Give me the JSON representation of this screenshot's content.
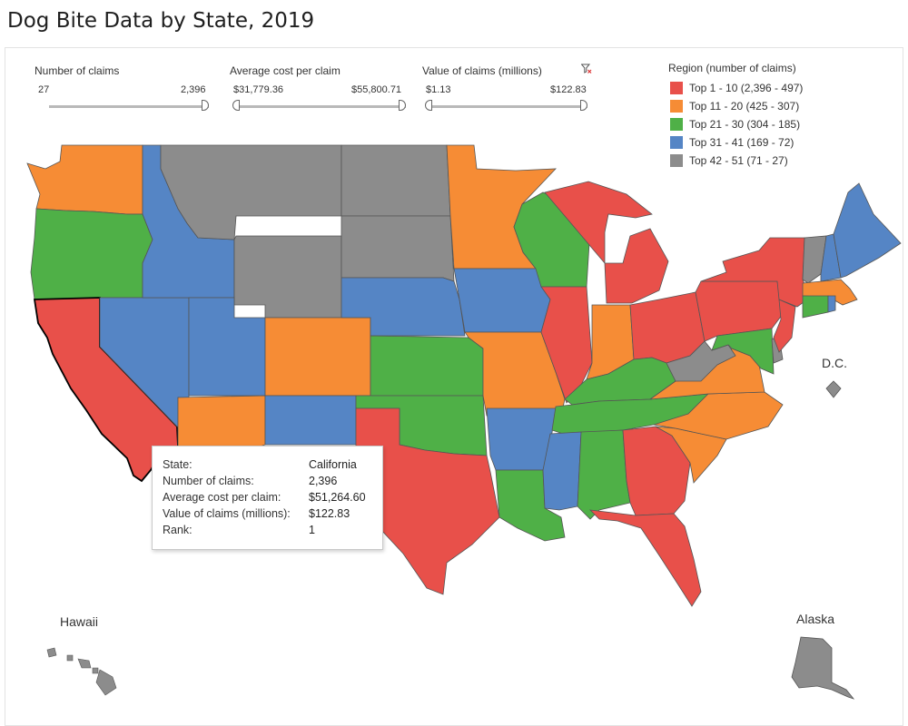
{
  "title": "Dog Bite Data by State, 2019",
  "filters": {
    "claims": {
      "title": "Number of claims",
      "min": "27",
      "max": "2,396"
    },
    "avg_cost": {
      "title": "Average cost per claim",
      "min": "$31,779.36",
      "max": "$55,800.71"
    },
    "value": {
      "title": "Value of claims (millions)",
      "min": "$1.13",
      "max": "$122.83"
    }
  },
  "legend": {
    "title": "Region (number of claims)",
    "items": [
      {
        "label": "Top 1 - 10 (2,396 - 497)",
        "color": "#e8504a"
      },
      {
        "label": "Top 11 - 20 (425 - 307)",
        "color": "#f68c35"
      },
      {
        "label": "Top 21 - 30 (304 - 185)",
        "color": "#4fb047"
      },
      {
        "label": "Top 31 - 41 (169 - 72)",
        "color": "#5585c5"
      },
      {
        "label": "Top 42 - 51 (71 - 27)",
        "color": "#8c8c8c"
      }
    ]
  },
  "tooltip": {
    "rows": [
      {
        "label": "State:",
        "value": "California"
      },
      {
        "label": "Number of claims:",
        "value": "2,396"
      },
      {
        "label": "Average cost per claim:",
        "value": "$51,264.60"
      },
      {
        "label": "Value of claims (millions):",
        "value": "$122.83"
      },
      {
        "label": "Rank:",
        "value": "1"
      }
    ]
  },
  "map_labels": {
    "dc": "D.C.",
    "hawaii": "Hawaii",
    "alaska": "Alaska"
  },
  "chart_data": {
    "type": "choropleth",
    "selected_state": "California",
    "states": [
      {
        "state": "California",
        "tier": 1
      },
      {
        "state": "Texas",
        "tier": 1
      },
      {
        "state": "Florida",
        "tier": 1
      },
      {
        "state": "Illinois",
        "tier": 1
      },
      {
        "state": "Michigan",
        "tier": 1
      },
      {
        "state": "Ohio",
        "tier": 1
      },
      {
        "state": "Pennsylvania",
        "tier": 1
      },
      {
        "state": "New York",
        "tier": 1
      },
      {
        "state": "New Jersey",
        "tier": 1
      },
      {
        "state": "Georgia",
        "tier": 1
      },
      {
        "state": "Washington",
        "tier": 2
      },
      {
        "state": "Arizona",
        "tier": 2
      },
      {
        "state": "Colorado",
        "tier": 2
      },
      {
        "state": "Minnesota",
        "tier": 2
      },
      {
        "state": "Missouri",
        "tier": 2
      },
      {
        "state": "Indiana",
        "tier": 2
      },
      {
        "state": "Virginia",
        "tier": 2
      },
      {
        "state": "North Carolina",
        "tier": 2
      },
      {
        "state": "South Carolina",
        "tier": 2
      },
      {
        "state": "Massachusetts",
        "tier": 2
      },
      {
        "state": "Oregon",
        "tier": 3
      },
      {
        "state": "Kansas",
        "tier": 3
      },
      {
        "state": "Oklahoma",
        "tier": 3
      },
      {
        "state": "Wisconsin",
        "tier": 3
      },
      {
        "state": "Kentucky",
        "tier": 3
      },
      {
        "state": "Tennessee",
        "tier": 3
      },
      {
        "state": "Louisiana",
        "tier": 3
      },
      {
        "state": "Alabama",
        "tier": 3
      },
      {
        "state": "Maryland",
        "tier": 3
      },
      {
        "state": "Connecticut",
        "tier": 3
      },
      {
        "state": "Idaho",
        "tier": 4
      },
      {
        "state": "Nevada",
        "tier": 4
      },
      {
        "state": "Utah",
        "tier": 4
      },
      {
        "state": "New Mexico",
        "tier": 4
      },
      {
        "state": "Nebraska",
        "tier": 4
      },
      {
        "state": "Iowa",
        "tier": 4
      },
      {
        "state": "Arkansas",
        "tier": 4
      },
      {
        "state": "Mississippi",
        "tier": 4
      },
      {
        "state": "Maine",
        "tier": 4
      },
      {
        "state": "New Hampshire",
        "tier": 4
      },
      {
        "state": "Rhode Island",
        "tier": 4
      },
      {
        "state": "Montana",
        "tier": 5
      },
      {
        "state": "Wyoming",
        "tier": 5
      },
      {
        "state": "North Dakota",
        "tier": 5
      },
      {
        "state": "South Dakota",
        "tier": 5
      },
      {
        "state": "West Virginia",
        "tier": 5
      },
      {
        "state": "Vermont",
        "tier": 5
      },
      {
        "state": "Delaware",
        "tier": 5
      },
      {
        "state": "District of Columbia",
        "tier": 5
      },
      {
        "state": "Hawaii",
        "tier": 5
      },
      {
        "state": "Alaska",
        "tier": 5
      }
    ]
  }
}
